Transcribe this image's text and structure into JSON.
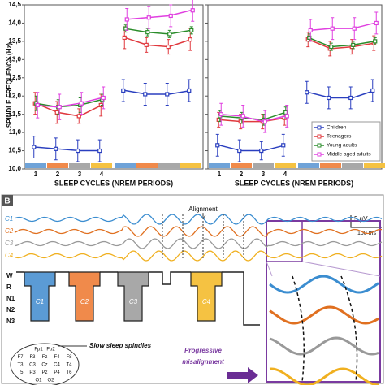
{
  "chart_data": [
    {
      "type": "line",
      "y_label": "SPINDLE FREQUENCY (Hz)",
      "x_label": "SLEEP CYCLES (NREM PERIODS)",
      "categories": [
        "1",
        "2",
        "3",
        "4",
        null,
        null,
        null,
        null
      ],
      "ylim": [
        10.0,
        14.5
      ],
      "yticks": [
        {
          "value": 10.0,
          "label": "10,0"
        },
        {
          "value": 10.5,
          "label": "10,5"
        },
        {
          "value": 11.0,
          "label": "11,0"
        },
        {
          "value": 11.5,
          "label": "11,5"
        },
        {
          "value": 12.0,
          "label": "12,0"
        },
        {
          "value": 12.5,
          "label": "12,5"
        },
        {
          "value": 13.0,
          "label": "13,0"
        },
        {
          "value": 13.5,
          "label": "13,5"
        },
        {
          "value": 14.0,
          "label": "14,0"
        },
        {
          "value": 14.5,
          "label": "14,5"
        }
      ],
      "series": [
        {
          "color": "#2a3fbf",
          "values": [
            10.6,
            10.55,
            10.5,
            10.5,
            12.15,
            12.05,
            12.05,
            12.15
          ],
          "errors": [
            0.3,
            0.3,
            0.3,
            0.3,
            0.3,
            0.3,
            0.3,
            0.3
          ]
        },
        {
          "color": "#e0393e",
          "values": [
            11.8,
            11.55,
            11.45,
            11.75,
            13.6,
            13.4,
            13.35,
            13.55
          ],
          "errors": [
            0.3,
            0.3,
            0.2,
            0.3,
            0.3,
            0.2,
            0.2,
            0.3
          ]
        },
        {
          "color": "#2a8c2a",
          "values": [
            11.8,
            11.7,
            11.75,
            11.9,
            13.85,
            13.75,
            13.7,
            13.8
          ],
          "errors": [
            0.2,
            0.2,
            0.2,
            0.15,
            0.1,
            0.1,
            0.1,
            0.1
          ]
        },
        {
          "color": "#e040e0",
          "values": [
            11.75,
            11.7,
            11.8,
            11.95,
            14.1,
            14.15,
            14.2,
            14.35
          ],
          "errors": [
            0.35,
            0.35,
            0.3,
            0.3,
            0.3,
            0.3,
            0.3,
            0.3
          ]
        }
      ]
    },
    {
      "type": "line",
      "x_label": "SLEEP CYCLES (NREM PERIODS)",
      "categories": [
        "1",
        "2",
        "3",
        "4",
        null,
        null,
        null,
        null
      ],
      "ylim": [
        10.0,
        14.5
      ],
      "yticks": [
        10.0,
        10.5,
        11.0,
        11.5,
        12.0,
        12.5,
        13.0,
        13.5,
        14.0,
        14.5
      ],
      "series": [
        {
          "name": "Children",
          "color": "#2a3fbf",
          "values": [
            10.65,
            10.5,
            10.5,
            10.65,
            12.1,
            11.95,
            11.95,
            12.15
          ],
          "errors": [
            0.3,
            0.3,
            0.25,
            0.3,
            0.3,
            0.3,
            0.3,
            0.3
          ]
        },
        {
          "name": "Teenagers",
          "color": "#e0393e",
          "values": [
            11.35,
            11.3,
            11.3,
            11.4,
            13.55,
            13.3,
            13.35,
            13.45
          ],
          "errors": [
            0.2,
            0.2,
            0.2,
            0.2,
            0.2,
            0.2,
            0.2,
            0.2
          ]
        },
        {
          "name": "Young adults",
          "color": "#2a8c2a",
          "values": [
            11.45,
            11.4,
            11.35,
            11.55,
            13.6,
            13.35,
            13.4,
            13.5
          ],
          "errors": [
            0.15,
            0.15,
            0.15,
            0.15,
            0.1,
            0.1,
            0.1,
            0.1
          ]
        },
        {
          "name": "Middle aged adults",
          "color": "#e040e0",
          "values": [
            11.5,
            11.45,
            11.3,
            11.45,
            13.8,
            13.85,
            13.85,
            14.0
          ],
          "errors": [
            0.3,
            0.3,
            0.3,
            0.3,
            0.3,
            0.3,
            0.3,
            0.3
          ]
        }
      ]
    }
  ],
  "panel_b": {
    "label": "B",
    "alignment": "Alignment",
    "scale_v": "5 µV",
    "scale_t": "100 ms",
    "traces": [
      "C1",
      "C2",
      "C3",
      "C4"
    ],
    "stages": [
      "W",
      "R",
      "N1",
      "N2",
      "N3"
    ],
    "blocks": [
      "C1",
      "C2",
      "C3",
      "C4"
    ],
    "montage_title": "Slow sleep spindles",
    "electrodes": [
      "Fp1",
      "Fp2",
      "F7",
      "F3",
      "Fz",
      "F4",
      "F8",
      "T3",
      "C3",
      "Cz",
      "C4",
      "T4",
      "T5",
      "P3",
      "Pz",
      "P4",
      "T6",
      "O1",
      "O2"
    ],
    "note": [
      "Progressive",
      "misalignment"
    ]
  }
}
